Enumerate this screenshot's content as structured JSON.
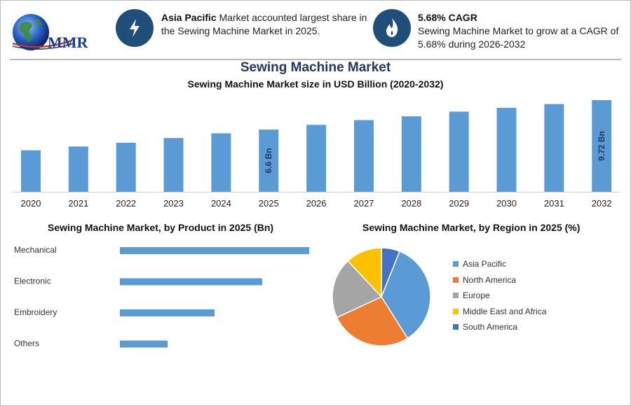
{
  "header": {
    "logo_text": "MMR",
    "info1_bold": "Asia Pacific",
    "info1_text": " Market accounted largest share in the Sewing Machine Market in 2025.",
    "info2_bold": "5.68% CAGR",
    "info2_text": "Sewing Machine Market to grow at a CAGR of 5.68% during 2026-2032",
    "icon_left": "lightning-icon",
    "icon_right": "flame-icon"
  },
  "colors": {
    "bar": "#5b9bd5",
    "title": "#1f3864",
    "icon_bg": "#1f4e79",
    "pie": [
      "#5b9bd5",
      "#ed7d31",
      "#a5a5a5",
      "#ffc000",
      "#4472c4"
    ]
  },
  "chart_data": [
    {
      "type": "bar",
      "title": "Sewing Machine Market",
      "subtitle": "Sewing Machine Market size in USD Billion (2020-2032)",
      "categories": [
        "2020",
        "2021",
        "2022",
        "2023",
        "2024",
        "2025",
        "2026",
        "2027",
        "2028",
        "2029",
        "2030",
        "2031",
        "2032"
      ],
      "values": [
        4.4,
        4.8,
        5.2,
        5.7,
        6.2,
        6.6,
        7.1,
        7.6,
        8.0,
        8.5,
        8.9,
        9.3,
        9.72
      ],
      "data_labels": [
        {
          "index": 5,
          "text": "6.6 Bn"
        },
        {
          "index": 12,
          "text": "9.72 Bn"
        }
      ],
      "ylim": [
        0,
        10
      ]
    },
    {
      "type": "bar",
      "orientation": "horizontal",
      "title": "Sewing Machine Market, by Product in 2025 (Bn)",
      "categories": [
        "Mechanical",
        "Electronic",
        "Embroidery",
        "Others"
      ],
      "values": [
        2.7,
        2.03,
        1.35,
        0.68
      ]
    },
    {
      "type": "pie",
      "title": "Sewing Machine Market, by Region in 2025 (%)",
      "labels": [
        "Asia Pacific",
        "North America",
        "Europe",
        "Middle East and Africa",
        "South America"
      ],
      "values": [
        35,
        27,
        20,
        12,
        6
      ]
    }
  ]
}
